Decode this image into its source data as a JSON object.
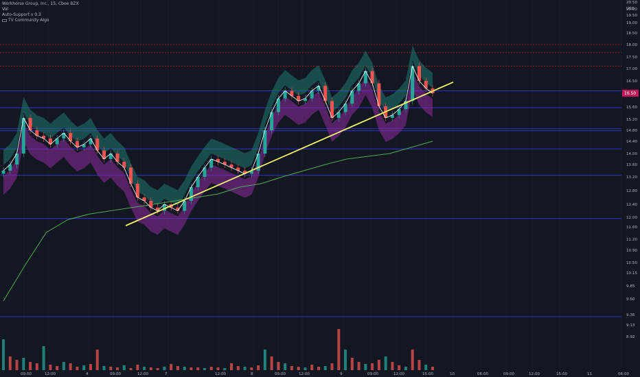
{
  "legend": {
    "title": "Workhorse Group, Inc., 15, Cboe BZX",
    "vol": "Vol",
    "indicator_1": "Auto-Support v 0.3",
    "indicator_2": "TV Community Algo"
  },
  "axis": {
    "currency": "USD",
    "current_price_label": "16.50"
  },
  "colors": {
    "background": "#131722",
    "up": "#26a69a",
    "down": "#ef5350",
    "trendline": "#f5f56a",
    "vwap": "#ffffff",
    "ma_slow": "#4caf50",
    "cloud_up": "#1f7a6e",
    "cloud_down": "#8e2c9c",
    "support_line": "#3d3dff",
    "resistance_line": "#c62828",
    "price_badge": "#c2185b"
  },
  "chart_data": {
    "type": "candlestick",
    "title": "Workhorse Group, Inc., 15, Cboe BZX",
    "xlabel": "",
    "ylabel": "USD",
    "y_ticks": [
      "20.50",
      "20.00",
      "19.50",
      "19.00",
      "18.50",
      "18.00",
      "17.50",
      "17.00",
      "16.50",
      "16.00",
      "15.60",
      "15.20",
      "14.80",
      "14.40",
      "14.00",
      "13.60",
      "13.20",
      "12.80",
      "12.40",
      "12.00",
      "11.60",
      "11.20",
      "10.90",
      "10.50",
      "10.15",
      "9.85",
      "9.60",
      "9.36",
      "9.13",
      "8.92"
    ],
    "x_ticks": [
      "09:00",
      "12:00",
      "4",
      "09:00",
      "12:00",
      "7",
      "12:00",
      "8",
      "09:00",
      "12:00",
      "9",
      "09:00",
      "12:00",
      "15:00",
      "10",
      "06:00",
      "09:00",
      "12:00",
      "15:00",
      "11",
      "06:00"
    ],
    "ylim": [
      8.92,
      20.5
    ],
    "horizontal_levels": {
      "resistance": [
        18.5,
        18.15,
        17.6
      ],
      "support": [
        16.6,
        15.95,
        15.25,
        14.55,
        13.65,
        12.35,
        9.6
      ]
    },
    "trendline": {
      "from": [
        12.05
      ],
      "to": [
        16.95
      ]
    },
    "price_close": [
      13.8,
      14.0,
      14.4,
      15.6,
      15.2,
      15.0,
      14.9,
      14.7,
      14.9,
      15.1,
      14.8,
      14.6,
      14.7,
      14.9,
      14.5,
      14.2,
      14.4,
      14.1,
      13.9,
      13.4,
      13.0,
      12.9,
      12.7,
      12.6,
      12.8,
      12.7,
      12.6,
      12.9,
      13.3,
      13.6,
      13.9,
      14.2,
      14.1,
      14.0,
      13.9,
      13.8,
      13.7,
      13.8,
      14.4,
      15.2,
      15.8,
      16.3,
      16.6,
      16.4,
      16.2,
      16.3,
      16.6,
      16.8,
      16.2,
      15.6,
      15.8,
      16.1,
      16.6,
      16.9,
      17.4,
      16.9,
      16.0,
      15.6,
      15.7,
      15.9,
      16.2,
      17.6,
      17.0,
      16.7,
      16.5
    ],
    "ma_slow": [
      10.0,
      11.0,
      11.8,
      12.3,
      12.5,
      12.6,
      12.7,
      12.8,
      12.9,
      13.0,
      13.1,
      13.3,
      13.4,
      13.6,
      13.8,
      14.0,
      14.2,
      14.3,
      14.4,
      14.6,
      14.8
    ],
    "volume": [
      0.45,
      0.2,
      0.15,
      0.18,
      0.12,
      0.1,
      0.35,
      0.08,
      0.06,
      0.12,
      0.1,
      0.05,
      0.07,
      0.09,
      0.3,
      0.06,
      0.05,
      0.04,
      0.07,
      0.03,
      0.08,
      0.05,
      0.04,
      0.03,
      0.05,
      0.09,
      0.06,
      0.05,
      0.04,
      0.04,
      0.03,
      0.05,
      0.04,
      0.03,
      0.1,
      0.06,
      0.05,
      0.04,
      0.07,
      0.3,
      0.2,
      0.12,
      0.1,
      0.06,
      0.05,
      0.04,
      0.08,
      0.05,
      0.06,
      0.1,
      0.6,
      0.3,
      0.18,
      0.12,
      0.09,
      0.1,
      0.15,
      0.2,
      0.12,
      0.07,
      0.05,
      0.3,
      0.15,
      0.08,
      0.05
    ]
  }
}
